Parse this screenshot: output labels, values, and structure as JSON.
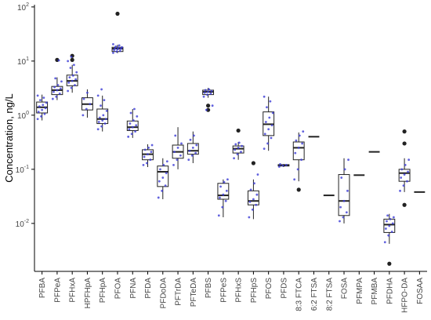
{
  "chart_data": {
    "type": "boxplot",
    "ylabel": "Concentration, ng/L",
    "xlabel": "",
    "y_scale": "log10",
    "ylim": [
      0.0013,
      110
    ],
    "y_ticks": [
      {
        "value": 0.01,
        "base": "10",
        "exp": "-2"
      },
      {
        "value": 0.1,
        "base": "10",
        "exp": "-1"
      },
      {
        "value": 1,
        "base": "10",
        "exp": "0"
      },
      {
        "value": 10,
        "base": "10",
        "exp": "1"
      },
      {
        "value": 100,
        "base": "10",
        "exp": "2"
      }
    ],
    "grid": false,
    "legend": "none",
    "box_color": "#222222",
    "point_color": "#3b3bd6",
    "categories": [
      {
        "name": "PFBA",
        "q1": 1.1,
        "median": 1.4,
        "q3": 1.75,
        "whisker_low": 0.8,
        "whisker_high": 2.4,
        "outliers": [],
        "points": [
          0.85,
          0.95,
          1.05,
          1.15,
          1.25,
          1.35,
          1.45,
          1.55,
          1.7,
          1.9,
          2.1,
          2.3
        ]
      },
      {
        "name": "PFPeA",
        "q1": 2.4,
        "median": 2.9,
        "q3": 3.4,
        "whisker_low": 1.9,
        "whisker_high": 5.0,
        "outliers": [
          10.5
        ],
        "points": [
          2.0,
          2.2,
          2.5,
          2.7,
          2.9,
          3.1,
          3.3,
          3.6,
          4.2,
          4.8,
          10.3
        ]
      },
      {
        "name": "PFHxA",
        "q1": 3.5,
        "median": 4.3,
        "q3": 5.5,
        "whisker_low": 2.6,
        "whisker_high": 8.5,
        "outliers": [
          10.5,
          12.5
        ],
        "points": [
          2.8,
          3.2,
          3.6,
          4.0,
          4.3,
          4.6,
          5.0,
          5.4,
          6.2,
          7.5,
          8.5,
          10.0,
          12.0
        ]
      },
      {
        "name": "HPFHpA",
        "q1": 1.25,
        "median": 1.6,
        "q3": 2.1,
        "whisker_low": 0.9,
        "whisker_high": 3.0,
        "outliers": [],
        "points": [
          1.0,
          1.3,
          1.6,
          2.0,
          2.6
        ]
      },
      {
        "name": "PFHpA",
        "q1": 0.7,
        "median": 0.85,
        "q3": 1.3,
        "whisker_low": 0.5,
        "whisker_high": 2.3,
        "outliers": [],
        "points": [
          0.55,
          0.62,
          0.7,
          0.75,
          0.8,
          0.85,
          0.9,
          1.0,
          1.2,
          1.5,
          1.9,
          2.3,
          3.0
        ]
      },
      {
        "name": "PFOA",
        "q1": 15.0,
        "median": 17.0,
        "q3": 18.0,
        "whisker_low": 14.0,
        "whisker_high": 20.0,
        "outliers": [
          75.0
        ],
        "points": [
          14.2,
          15.0,
          15.5,
          16.0,
          16.5,
          17.0,
          17.2,
          17.6,
          18.0,
          18.5,
          19.5,
          20.5
        ]
      },
      {
        "name": "PFNA",
        "q1": 0.52,
        "median": 0.6,
        "q3": 0.78,
        "whisker_low": 0.38,
        "whisker_high": 1.3,
        "outliers": [],
        "points": [
          0.4,
          0.45,
          0.5,
          0.55,
          0.6,
          0.65,
          0.7,
          0.8,
          0.95,
          1.1,
          1.3
        ]
      },
      {
        "name": "PFDA",
        "q1": 0.15,
        "median": 0.19,
        "q3": 0.23,
        "whisker_low": 0.11,
        "whisker_high": 0.29,
        "outliers": [],
        "points": [
          0.12,
          0.13,
          0.15,
          0.17,
          0.19,
          0.21,
          0.23,
          0.25,
          0.28
        ]
      },
      {
        "name": "PFDoDA",
        "q1": 0.048,
        "median": 0.09,
        "q3": 0.115,
        "whisker_low": 0.028,
        "whisker_high": 0.16,
        "outliers": [],
        "points": [
          0.03,
          0.04,
          0.05,
          0.06,
          0.07,
          0.085,
          0.1,
          0.12,
          0.14
        ]
      },
      {
        "name": "PFTrDA",
        "q1": 0.16,
        "median": 0.21,
        "q3": 0.28,
        "whisker_low": 0.1,
        "whisker_high": 0.6,
        "outliers": [],
        "points": [
          0.12,
          0.15,
          0.18,
          0.21,
          0.25,
          0.3,
          0.42
        ]
      },
      {
        "name": "PFTeDA",
        "q1": 0.19,
        "median": 0.22,
        "q3": 0.3,
        "whisker_low": 0.13,
        "whisker_high": 0.5,
        "outliers": [],
        "points": [
          0.15,
          0.18,
          0.2,
          0.22,
          0.25,
          0.28,
          0.35,
          0.42
        ]
      },
      {
        "name": "PFBS",
        "q1": 2.4,
        "median": 2.7,
        "q3": 2.9,
        "whisker_low": 2.1,
        "whisker_high": 3.2,
        "outliers": [
          1.5,
          1.25
        ],
        "points": [
          2.2,
          2.4,
          2.5,
          2.6,
          2.7,
          2.8,
          2.9,
          3.0,
          1.5,
          1.25
        ]
      },
      {
        "name": "PFPeS",
        "q1": 0.028,
        "median": 0.033,
        "q3": 0.055,
        "whisker_low": 0.013,
        "whisker_high": 0.065,
        "outliers": [],
        "points": [
          0.014,
          0.02,
          0.026,
          0.03,
          0.034,
          0.04,
          0.048,
          0.058,
          0.065
        ]
      },
      {
        "name": "PFHxS",
        "q1": 0.2,
        "median": 0.24,
        "q3": 0.27,
        "whisker_low": 0.15,
        "whisker_high": 0.32,
        "outliers": [
          0.52
        ],
        "points": [
          0.16,
          0.19,
          0.21,
          0.23,
          0.25,
          0.27,
          0.29,
          0.31
        ]
      },
      {
        "name": "PFHpS",
        "q1": 0.022,
        "median": 0.026,
        "q3": 0.04,
        "whisker_low": 0.012,
        "whisker_high": 0.065,
        "outliers": [
          0.13
        ],
        "points": [
          0.013,
          0.018,
          0.022,
          0.025,
          0.028,
          0.034,
          0.042,
          0.055,
          0.08
        ]
      },
      {
        "name": "PFOS",
        "q1": 0.42,
        "median": 0.68,
        "q3": 1.15,
        "whisker_low": 0.22,
        "whisker_high": 2.2,
        "outliers": [],
        "points": [
          0.24,
          0.3,
          0.38,
          0.45,
          0.55,
          0.65,
          0.75,
          0.9,
          1.1,
          1.4,
          1.8,
          2.2
        ]
      },
      {
        "name": "PFDS",
        "q1": 0.115,
        "median": 0.118,
        "q3": 0.122,
        "whisker_low": 0.11,
        "whisker_high": 0.125,
        "outliers": [],
        "points": [
          0.112,
          0.117,
          0.12,
          0.124
        ]
      },
      {
        "name": "8:3 FTCA",
        "q1": 0.15,
        "median": 0.25,
        "q3": 0.32,
        "whisker_low": 0.06,
        "whisker_high": 0.48,
        "outliers": [
          0.042
        ],
        "points": [
          0.065,
          0.1,
          0.15,
          0.2,
          0.25,
          0.3,
          0.34,
          0.42,
          0.5
        ]
      },
      {
        "name": "6:2 FTSA",
        "q1": 0.4,
        "median": 0.4,
        "q3": 0.4,
        "whisker_low": 0.4,
        "whisker_high": 0.4,
        "outliers": [],
        "points": []
      },
      {
        "name": "8:2 FTSA",
        "q1": 0.033,
        "median": 0.033,
        "q3": 0.033,
        "whisker_low": 0.033,
        "whisker_high": 0.033,
        "outliers": [],
        "points": []
      },
      {
        "name": "FOSA",
        "q1": 0.014,
        "median": 0.026,
        "q3": 0.08,
        "whisker_low": 0.01,
        "whisker_high": 0.16,
        "outliers": [],
        "points": [
          0.011,
          0.013,
          0.016,
          0.02,
          0.026,
          0.04,
          0.07,
          0.1,
          0.15
        ]
      },
      {
        "name": "PFMPA",
        "q1": 0.078,
        "median": 0.078,
        "q3": 0.078,
        "whisker_low": 0.078,
        "whisker_high": 0.078,
        "outliers": [],
        "points": []
      },
      {
        "name": "PFMBA",
        "q1": 0.21,
        "median": 0.21,
        "q3": 0.21,
        "whisker_low": 0.21,
        "whisker_high": 0.21,
        "outliers": [],
        "points": []
      },
      {
        "name": "PFDHA",
        "q1": 0.0068,
        "median": 0.0095,
        "q3": 0.012,
        "whisker_low": 0.0042,
        "whisker_high": 0.015,
        "outliers": [
          0.0018
        ],
        "points": [
          0.0045,
          0.006,
          0.007,
          0.008,
          0.009,
          0.01,
          0.011,
          0.012,
          0.013,
          0.014
        ]
      },
      {
        "name": "HFPO-DA",
        "q1": 0.06,
        "median": 0.085,
        "q3": 0.1,
        "whisker_low": 0.038,
        "whisker_high": 0.16,
        "outliers": [
          0.5,
          0.3,
          0.022
        ],
        "points": [
          0.04,
          0.05,
          0.06,
          0.07,
          0.08,
          0.09,
          0.1,
          0.12,
          0.15
        ]
      },
      {
        "name": "FOSAA",
        "q1": 0.038,
        "median": 0.038,
        "q3": 0.038,
        "whisker_low": 0.038,
        "whisker_high": 0.038,
        "outliers": [],
        "points": []
      }
    ]
  }
}
